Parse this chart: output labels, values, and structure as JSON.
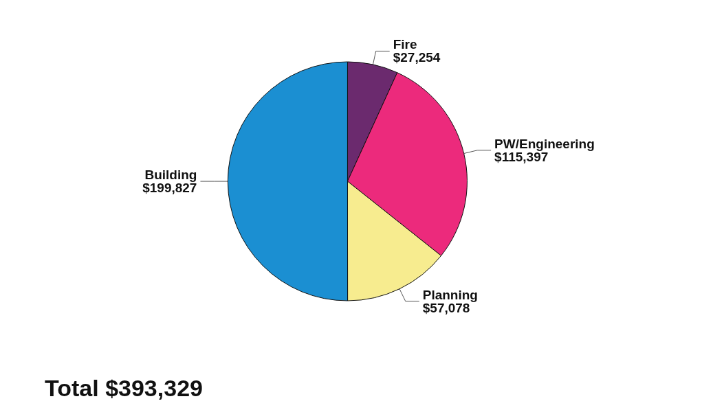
{
  "chart_data": {
    "type": "pie",
    "categories": [
      "Fire",
      "PW/Engineering",
      "Planning",
      "Building"
    ],
    "values": [
      27254,
      115397,
      57078,
      199827
    ],
    "value_labels": [
      "$27,254",
      "$115,397",
      "$57,078",
      "$199,827"
    ],
    "colors": [
      "#6b2a6e",
      "#ec2a7c",
      "#f7ec8f",
      "#1b8fd2"
    ],
    "annotations": [
      "Total $393,329"
    ],
    "legend": false
  }
}
